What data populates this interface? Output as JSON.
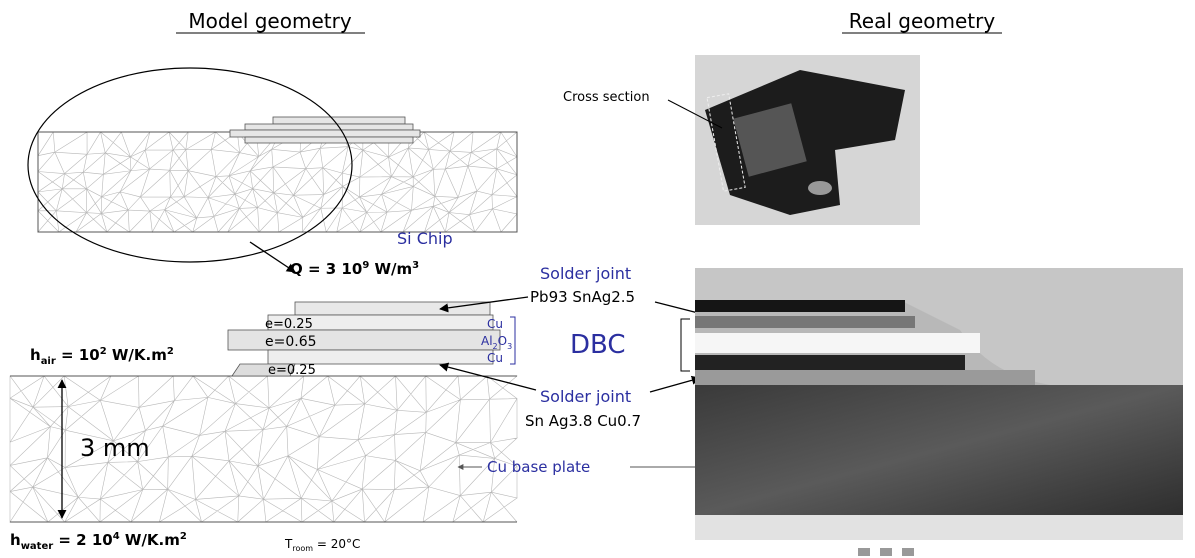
{
  "headers": {
    "model": "Model geometry",
    "real": "Real geometry"
  },
  "photo_label": "Cross section",
  "chip_label": "Si Chip",
  "heat_source": {
    "parts": [
      "Q = 3 10",
      "9",
      " W/m",
      "3"
    ]
  },
  "solder_top": {
    "title": "Solder joint",
    "alloy": "Pb93 SnAg2.5"
  },
  "dbc_label": "DBC",
  "thickness": [
    "e=0.25",
    "e=0.65",
    "e=0.25"
  ],
  "layers": {
    "cu_top": "Cu",
    "ceramic": [
      "Al",
      "2",
      "O",
      "3"
    ],
    "cu_bottom": "Cu"
  },
  "h_air": [
    "h",
    "air",
    " = 10",
    "2",
    " W/K.m",
    "2"
  ],
  "plate_thickness": "3 mm",
  "solder_bottom": {
    "title": "Solder joint",
    "alloy": "Sn Ag3.8 Cu0.7"
  },
  "base_plate": "Cu base plate",
  "h_water": [
    "h",
    "water",
    " = 2 10",
    "4",
    " W/K.m",
    "2"
  ],
  "t_room": [
    "T",
    "room",
    " = 20°C"
  ]
}
